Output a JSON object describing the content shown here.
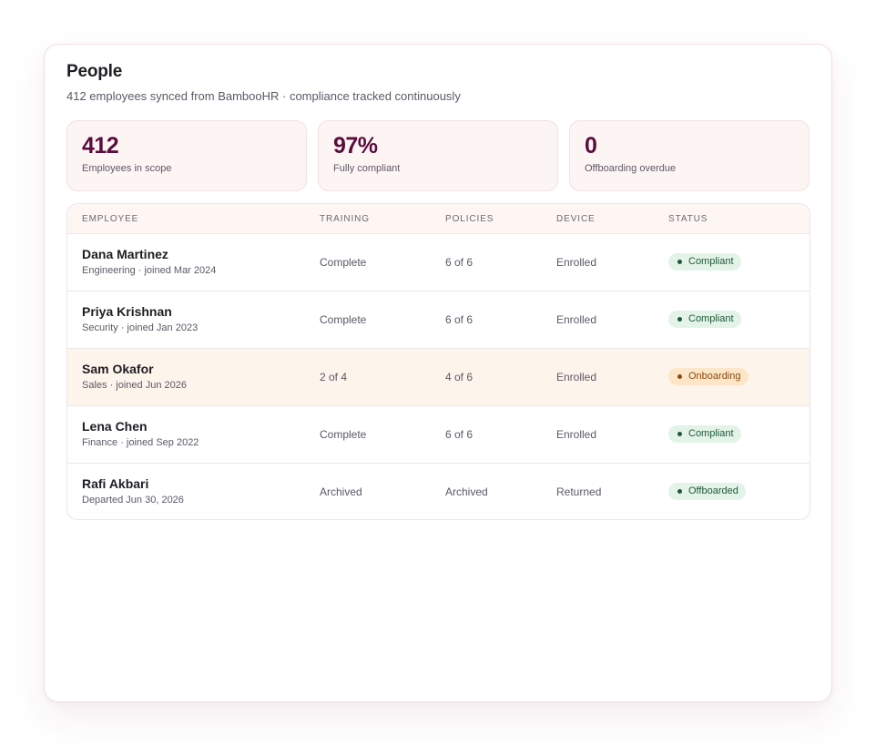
{
  "header": {
    "title": "People",
    "subtitle": "412 employees synced from BambooHR · compliance tracked continuously"
  },
  "stats": [
    {
      "value": "412",
      "label": "Employees in scope"
    },
    {
      "value": "97%",
      "label": "Fully compliant"
    },
    {
      "value": "0",
      "label": "Offboarding overdue"
    }
  ],
  "table": {
    "columns": [
      "EMPLOYEE",
      "TRAINING",
      "POLICIES",
      "DEVICE",
      "STATUS"
    ],
    "rows": [
      {
        "name": "Dana Martinez",
        "meta": "Engineering · joined Mar 2024",
        "training": "Complete",
        "policies": "6 of 6",
        "device": "Enrolled",
        "status": "Compliant",
        "status_color": "#1e5a36"
      },
      {
        "name": "Priya Krishnan",
        "meta": "Security · joined Jan 2023",
        "training": "Complete",
        "policies": "6 of 6",
        "device": "Enrolled",
        "status": "Compliant",
        "status_color": "#1e5a36"
      },
      {
        "name": "Sam Okafor",
        "meta": "Sales · joined Jun 2026",
        "training": "2 of 4",
        "policies": "4 of 6",
        "device": "Enrolled",
        "status": "Onboarding",
        "status_color": "#8b4a10"
      },
      {
        "name": "Lena Chen",
        "meta": "Finance · joined Sep 2022",
        "training": "Complete",
        "policies": "6 of 6",
        "device": "Enrolled",
        "status": "Compliant",
        "status_color": "#1e5a36"
      },
      {
        "name": "Rafi Akbari",
        "meta": "Departed Jun 30, 2026",
        "training": "Archived",
        "policies": "Archived",
        "device": "Returned",
        "status": "Offboarded",
        "status_color": "#1e5a36"
      }
    ]
  },
  "colors": {
    "accent": "#5a0d3c",
    "stat_bg": "#fdf4f4",
    "highlight_row": "#fdf4ec",
    "badge_green_bg": "#e3f3e8",
    "badge_orange_bg": "#fde6c8"
  }
}
